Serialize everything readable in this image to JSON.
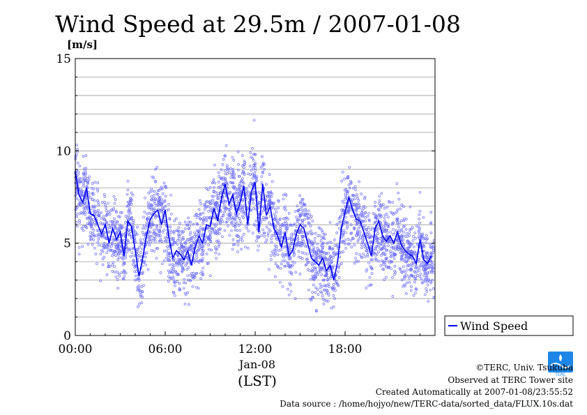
{
  "chart_data": {
    "type": "scatter",
    "title": "Wind Speed at 29.5m / 2007-01-08",
    "ylabel": "[m/s]",
    "xlabel": "(LST)",
    "date_label": "Jan-08",
    "ylim": [
      0,
      15
    ],
    "xlim": [
      0,
      24
    ],
    "y_ticks": [
      0,
      5,
      10,
      15
    ],
    "x_ticks": [
      {
        "value": 0,
        "label": "00:00"
      },
      {
        "value": 6,
        "label": "06:00"
      },
      {
        "value": 12,
        "label": "12:00"
      },
      {
        "value": 18,
        "label": "18:00"
      }
    ],
    "grid": true,
    "legend": {
      "position": "right",
      "entries": [
        "Wind Speed"
      ]
    },
    "series": [
      {
        "name": "Wind Speed",
        "kind": "line-mean",
        "color": "#0000ee",
        "x": [
          0.0,
          0.25,
          0.5,
          0.75,
          1.0,
          1.25,
          1.5,
          1.75,
          2.0,
          2.25,
          2.5,
          2.75,
          3.0,
          3.25,
          3.5,
          3.75,
          4.0,
          4.25,
          4.5,
          4.75,
          5.0,
          5.25,
          5.5,
          5.75,
          6.0,
          6.25,
          6.5,
          6.75,
          7.0,
          7.25,
          7.5,
          7.75,
          8.0,
          8.25,
          8.5,
          8.75,
          9.0,
          9.25,
          9.5,
          9.75,
          10.0,
          10.25,
          10.5,
          10.75,
          11.0,
          11.25,
          11.5,
          11.75,
          12.0,
          12.25,
          12.5,
          12.75,
          13.0,
          13.25,
          13.5,
          13.75,
          14.0,
          14.25,
          14.5,
          14.75,
          15.0,
          15.25,
          15.5,
          15.75,
          16.0,
          16.25,
          16.5,
          16.75,
          17.0,
          17.25,
          17.5,
          17.75,
          18.0,
          18.25,
          18.5,
          18.75,
          19.0,
          19.25,
          19.5,
          19.75,
          20.0,
          20.25,
          20.5,
          20.75,
          21.0,
          21.25,
          21.5,
          21.75,
          22.0,
          22.25,
          22.5,
          22.75,
          23.0,
          23.25,
          23.5,
          23.75
        ],
        "y": [
          8.9,
          7.6,
          7.2,
          8.0,
          6.6,
          6.5,
          6.0,
          5.5,
          6.0,
          5.0,
          5.8,
          5.2,
          5.6,
          4.3,
          6.2,
          5.9,
          4.6,
          3.2,
          4.2,
          5.4,
          6.3,
          6.6,
          6.8,
          6.0,
          6.8,
          5.3,
          4.2,
          4.6,
          4.4,
          4.1,
          4.6,
          3.8,
          4.8,
          5.4,
          5.0,
          6.0,
          5.9,
          6.9,
          6.2,
          7.4,
          8.2,
          7.1,
          7.6,
          6.6,
          7.2,
          8.1,
          6.0,
          7.8,
          8.3,
          5.6,
          8.2,
          6.5,
          7.0,
          5.8,
          5.4,
          4.8,
          5.6,
          4.3,
          4.6,
          5.5,
          6.0,
          5.8,
          5.0,
          4.2,
          4.0,
          3.8,
          4.2,
          3.5,
          3.8,
          3.0,
          4.0,
          5.8,
          6.7,
          7.5,
          6.8,
          6.3,
          6.2,
          5.6,
          5.0,
          4.3,
          5.8,
          6.2,
          5.4,
          5.1,
          5.4,
          5.0,
          5.6,
          4.9,
          4.6,
          4.4,
          4.3,
          3.9,
          5.2,
          4.1,
          3.9,
          4.3
        ]
      }
    ],
    "scatter_cloud": {
      "name": "Wind Speed samples",
      "color": "#6d6dff",
      "sample_interval_s": 10,
      "spread_ms": 2.2
    }
  },
  "footer": {
    "copyright": "©TERC, Univ. Tsukuba",
    "observed": "Observed at TERC Tower site",
    "created": "Created Automatically at 2007-01-08/23:55:52",
    "source": "Data source : /home/hojyo/new/TERC-data/sorted_data/FLUX.10s.dat"
  },
  "logo": {
    "text": "TERC",
    "color": "#1e86e6"
  }
}
